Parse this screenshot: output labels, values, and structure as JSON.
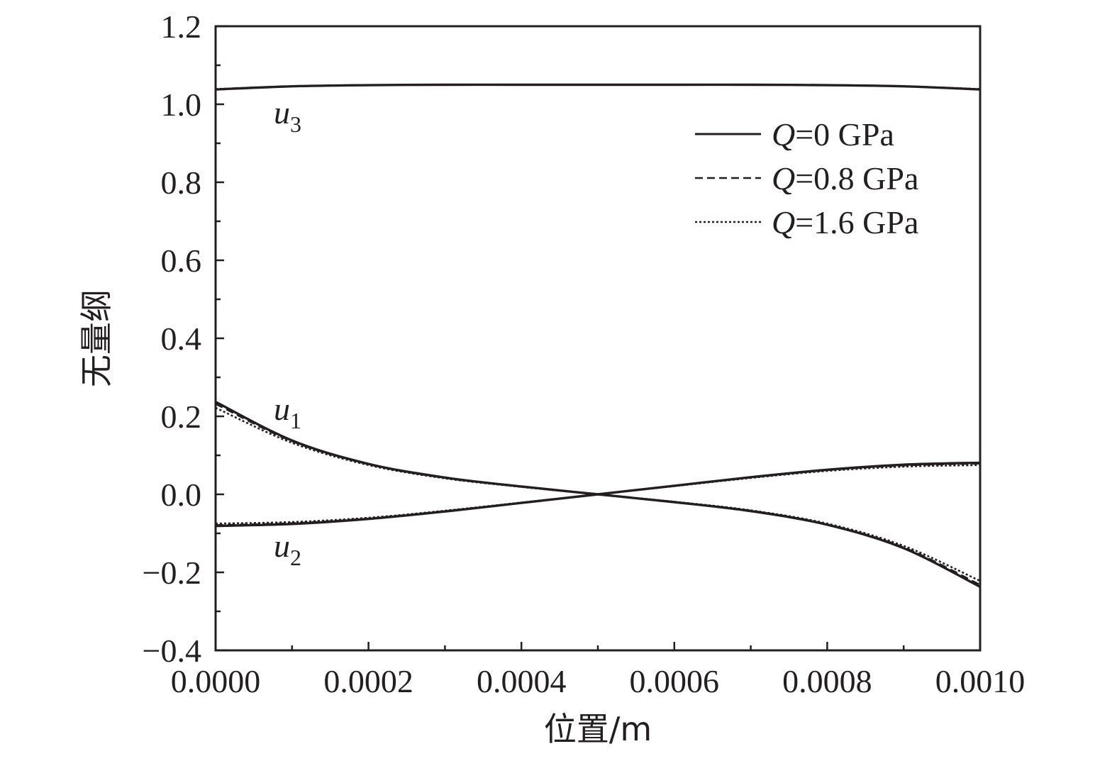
{
  "chart_data": {
    "type": "line",
    "xlabel": "位置/m",
    "ylabel": "无量纲",
    "xlim": [
      0,
      0.001
    ],
    "ylim": [
      -0.4,
      1.2
    ],
    "grid": false,
    "legend_position": "top-right",
    "x_ticks": [
      "0.0000",
      "0.0002",
      "0.0004",
      "0.0006",
      "0.0008",
      "0.0010"
    ],
    "y_ticks": [
      "−0.4",
      "−0.2",
      "0.0",
      "0.2",
      "0.4",
      "0.6",
      "0.8",
      "1.0",
      "1.2"
    ],
    "legend": [
      {
        "q": "Q",
        "label": "=0 GPa",
        "style": "solid"
      },
      {
        "q": "Q",
        "label": "=0.8 GPa",
        "style": "dashed"
      },
      {
        "q": "Q",
        "label": "=1.6 GPa",
        "style": "dotted"
      }
    ],
    "curve_labels": [
      {
        "base": "u",
        "sub": "3"
      },
      {
        "base": "u",
        "sub": "1"
      },
      {
        "base": "u",
        "sub": "2"
      }
    ],
    "x": [
      0,
      0.0001,
      0.0002,
      0.0003,
      0.0004,
      0.0005,
      0.0006,
      0.0007,
      0.0008,
      0.0009,
      0.001
    ],
    "series": [
      {
        "curve": "u1",
        "case": "Q=0 GPa",
        "style": "solid",
        "y": [
          0.237,
          0.138,
          0.078,
          0.043,
          0.02,
          0,
          -0.02,
          -0.043,
          -0.078,
          -0.138,
          -0.237
        ]
      },
      {
        "curve": "u1",
        "case": "Q=0.8 GPa",
        "style": "dashed",
        "y": [
          0.232,
          0.136,
          0.077,
          0.042,
          0.02,
          0,
          -0.02,
          -0.042,
          -0.077,
          -0.136,
          -0.232
        ]
      },
      {
        "curve": "u1",
        "case": "Q=1.6 GPa",
        "style": "dotted",
        "y": [
          0.222,
          0.132,
          0.075,
          0.041,
          0.019,
          0,
          -0.019,
          -0.041,
          -0.075,
          -0.132,
          -0.222
        ]
      },
      {
        "curve": "u2",
        "case": "Q=0 GPa",
        "style": "solid",
        "y": [
          -0.081,
          -0.076,
          -0.063,
          -0.044,
          -0.022,
          0,
          0.022,
          0.044,
          0.063,
          0.076,
          0.081
        ]
      },
      {
        "curve": "u2",
        "case": "Q=0.8 GPa",
        "style": "dashed",
        "y": [
          -0.079,
          -0.074,
          -0.062,
          -0.043,
          -0.022,
          0,
          0.022,
          0.043,
          0.062,
          0.074,
          0.079
        ]
      },
      {
        "curve": "u2",
        "case": "Q=1.6 GPa",
        "style": "dotted",
        "y": [
          -0.075,
          -0.071,
          -0.06,
          -0.042,
          -0.021,
          0,
          0.021,
          0.042,
          0.06,
          0.071,
          0.075
        ]
      },
      {
        "curve": "u3",
        "case": "Q=0 GPa",
        "style": "solid",
        "y": [
          1.038,
          1.046,
          1.049,
          1.05,
          1.05,
          1.05,
          1.05,
          1.05,
          1.049,
          1.046,
          1.038
        ]
      },
      {
        "curve": "u3",
        "case": "Q=0.8 GPa",
        "style": "dashed",
        "y": [
          1.038,
          1.046,
          1.049,
          1.05,
          1.05,
          1.05,
          1.05,
          1.05,
          1.049,
          1.046,
          1.038
        ]
      },
      {
        "curve": "u3",
        "case": "Q=1.6 GPa",
        "style": "dotted",
        "y": [
          1.039,
          1.046,
          1.049,
          1.05,
          1.05,
          1.05,
          1.05,
          1.05,
          1.049,
          1.046,
          1.039
        ]
      }
    ]
  }
}
